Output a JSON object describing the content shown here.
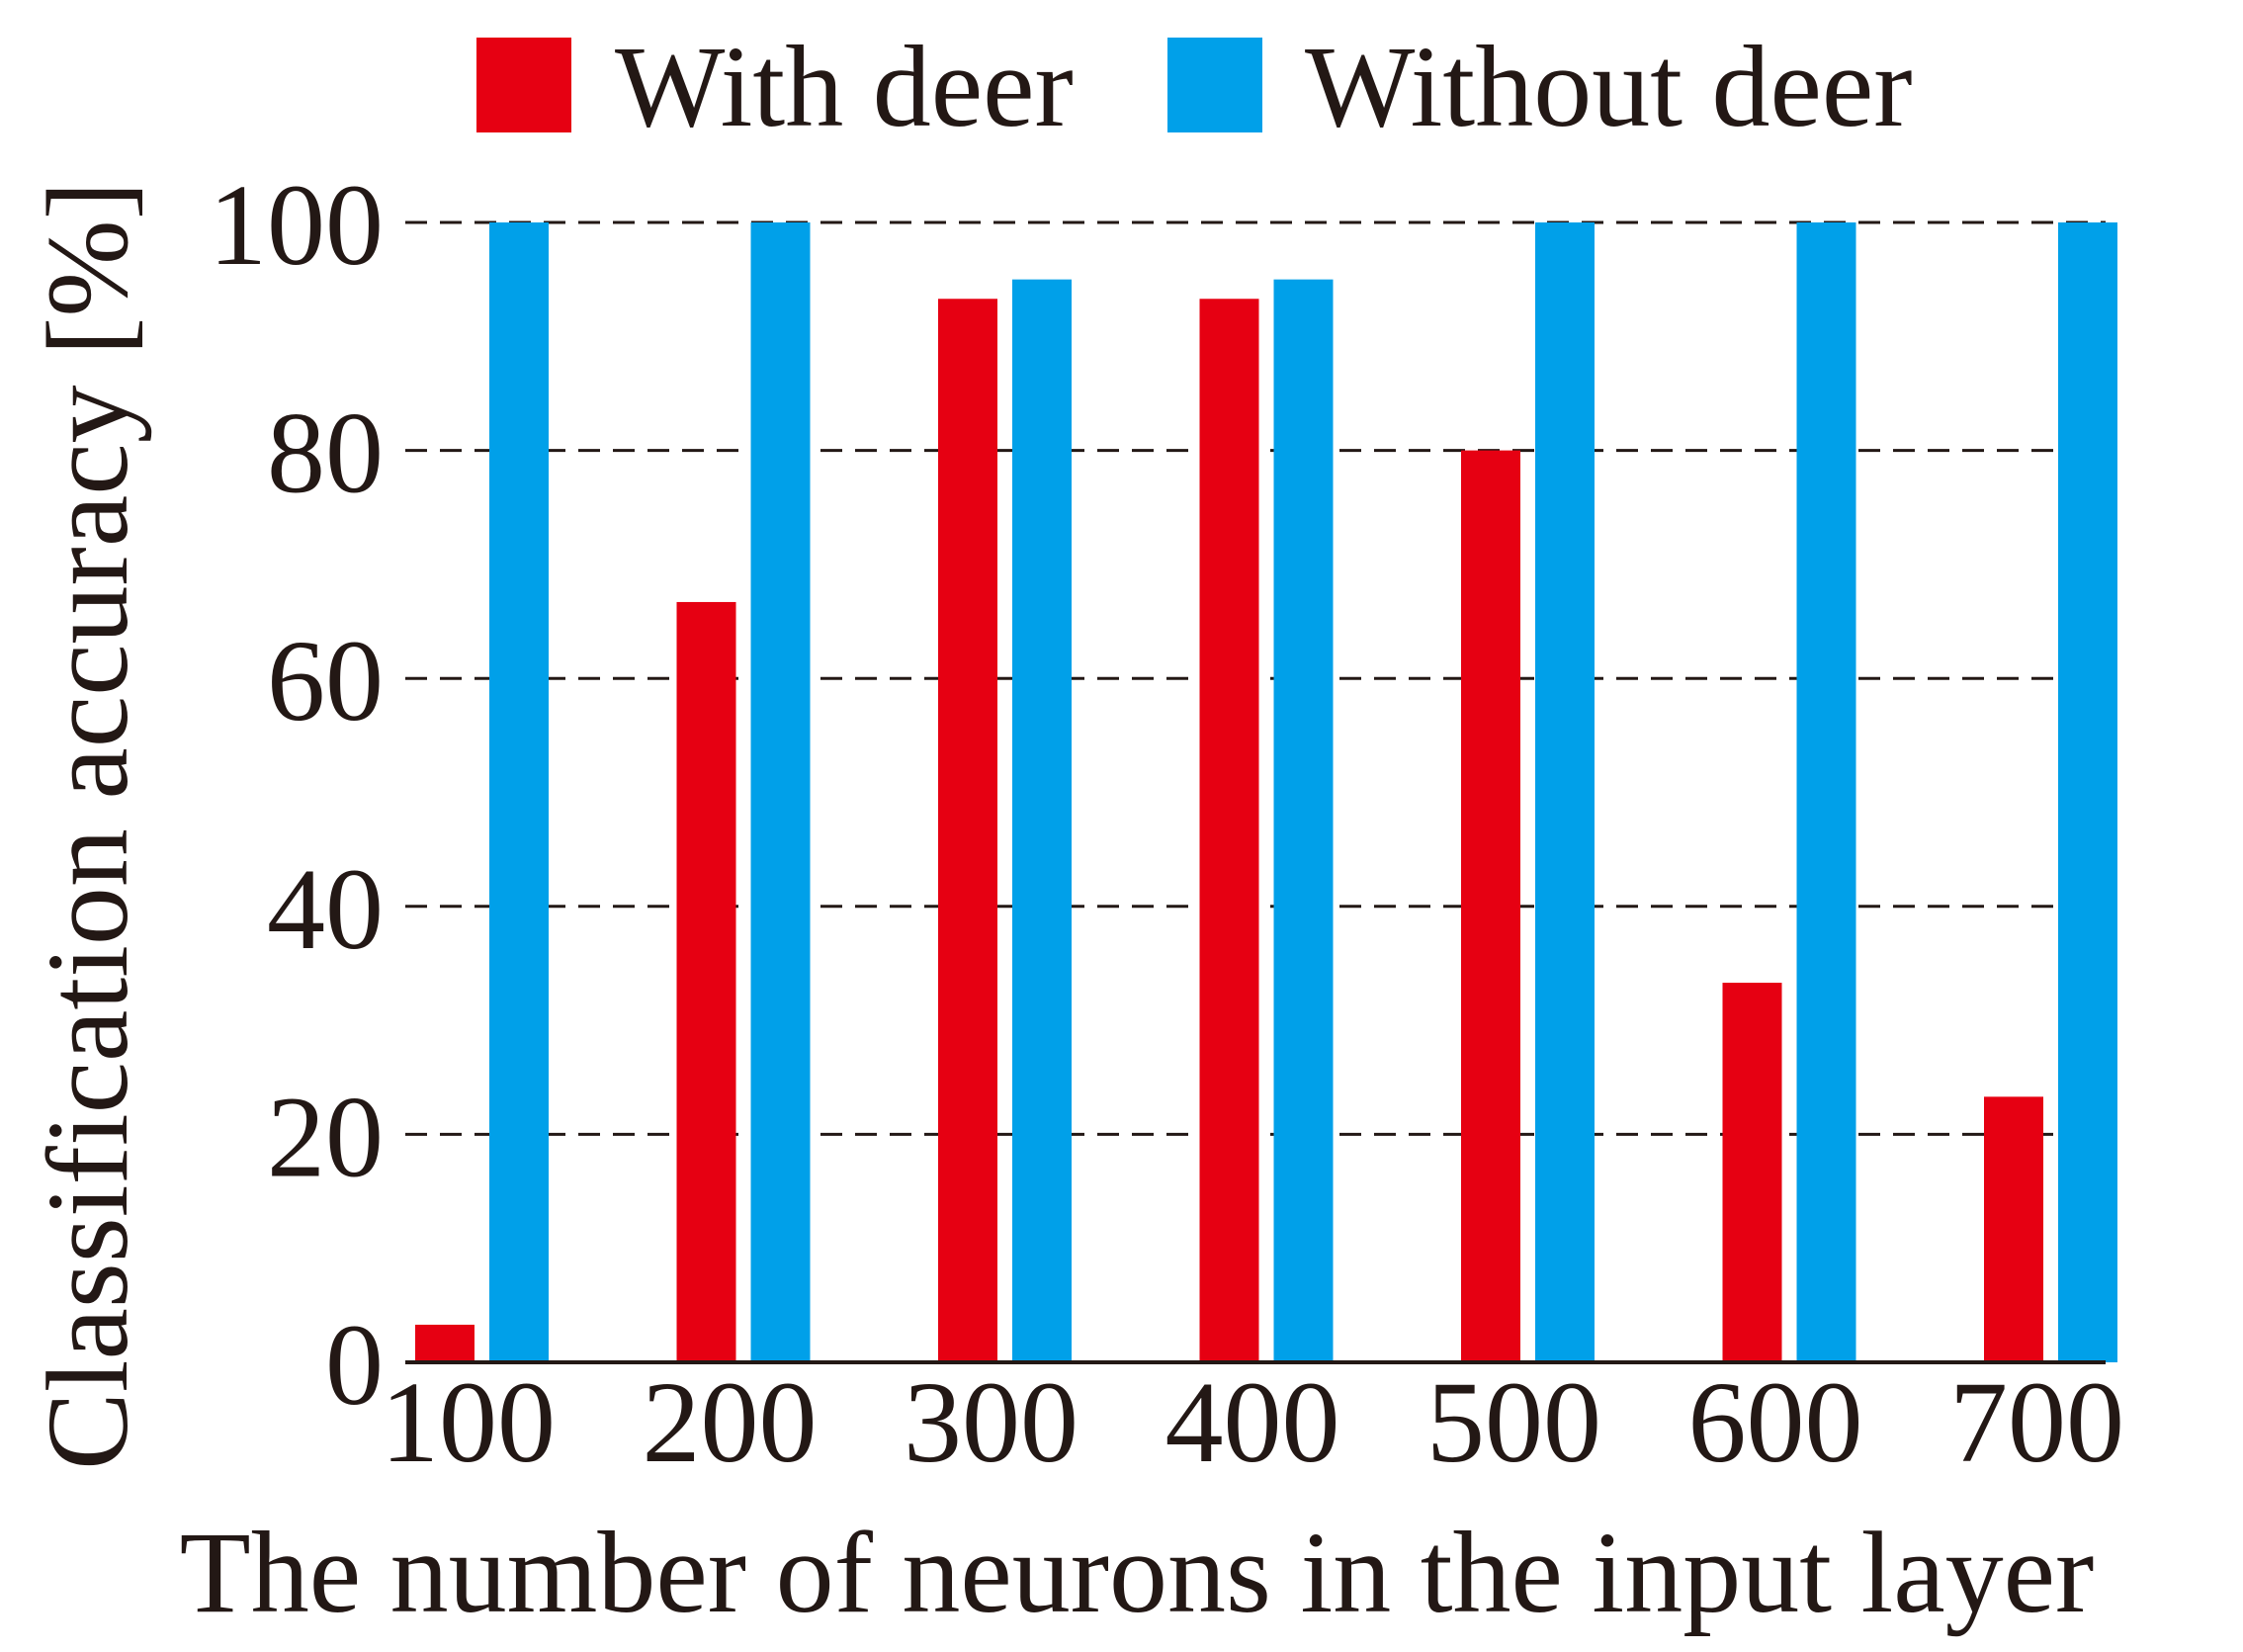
{
  "chart_data": {
    "type": "bar",
    "categories": [
      "100",
      "200",
      "300",
      "400",
      "500",
      "600",
      "700"
    ],
    "series": [
      {
        "name": "With deer",
        "color": "#e60012",
        "values": [
          3.3,
          66.7,
          93.3,
          93.3,
          80.0,
          33.3,
          23.3
        ]
      },
      {
        "name": "Without deer",
        "color": "#00a0e9",
        "values": [
          100,
          100,
          95.0,
          95.0,
          100,
          100,
          100
        ]
      }
    ],
    "title": "",
    "xlabel": "The number of neurons in the input layer",
    "ylabel": "Classification accuracy [%]",
    "ylim": [
      0,
      100
    ],
    "yticks": [
      "0",
      "20",
      "40",
      "60",
      "80",
      "100"
    ],
    "grid": "dashed horizontal",
    "legend_position": "top"
  }
}
